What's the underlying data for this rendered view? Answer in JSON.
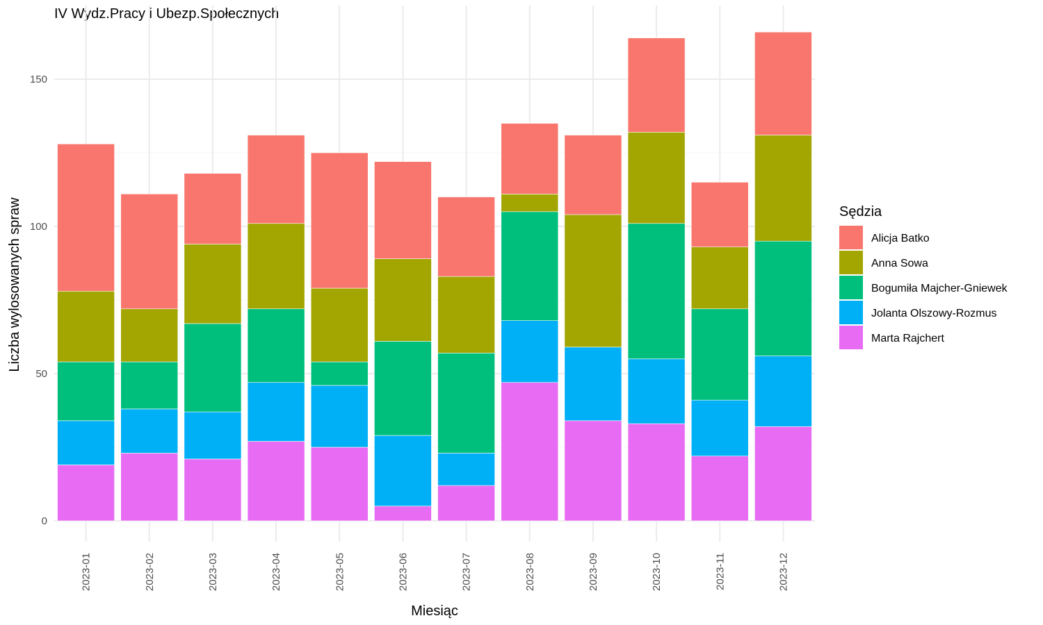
{
  "chart_data": {
    "type": "bar",
    "stacked": true,
    "title": "IV Wydz.Pracy i Ubezp.Społecznych",
    "xlabel": "Miesiąc",
    "ylabel": "Liczba wylosowanych spraw",
    "ylim": [
      0,
      170
    ],
    "yticks": [
      0,
      50,
      100,
      150
    ],
    "grid": true,
    "legend_position": "right",
    "legend_title": "Sędzia",
    "categories": [
      "2023-01",
      "2023-02",
      "2023-03",
      "2023-04",
      "2023-05",
      "2023-06",
      "2023-07",
      "2023-08",
      "2023-09",
      "2023-10",
      "2023-11",
      "2023-12"
    ],
    "series": [
      {
        "name": "Alicja Batko",
        "color": "#F8766D",
        "values": [
          50,
          39,
          24,
          30,
          46,
          33,
          27,
          24,
          27,
          32,
          22,
          35
        ]
      },
      {
        "name": "Anna Sowa",
        "color": "#A3A500",
        "values": [
          24,
          18,
          27,
          29,
          25,
          28,
          26,
          6,
          45,
          31,
          21,
          36
        ]
      },
      {
        "name": "Bogumiła Majcher-Gniewek",
        "color": "#00BF7D",
        "values": [
          20,
          16,
          30,
          25,
          8,
          32,
          34,
          37,
          0,
          46,
          31,
          39
        ]
      },
      {
        "name": "Jolanta Olszowy-Rozmus",
        "color": "#00B0F6",
        "values": [
          15,
          15,
          16,
          20,
          21,
          24,
          11,
          21,
          25,
          22,
          19,
          24
        ]
      },
      {
        "name": "Marta Rajchert",
        "color": "#E76BF3",
        "values": [
          19,
          23,
          21,
          27,
          25,
          5,
          12,
          47,
          34,
          33,
          22,
          32
        ]
      }
    ]
  }
}
